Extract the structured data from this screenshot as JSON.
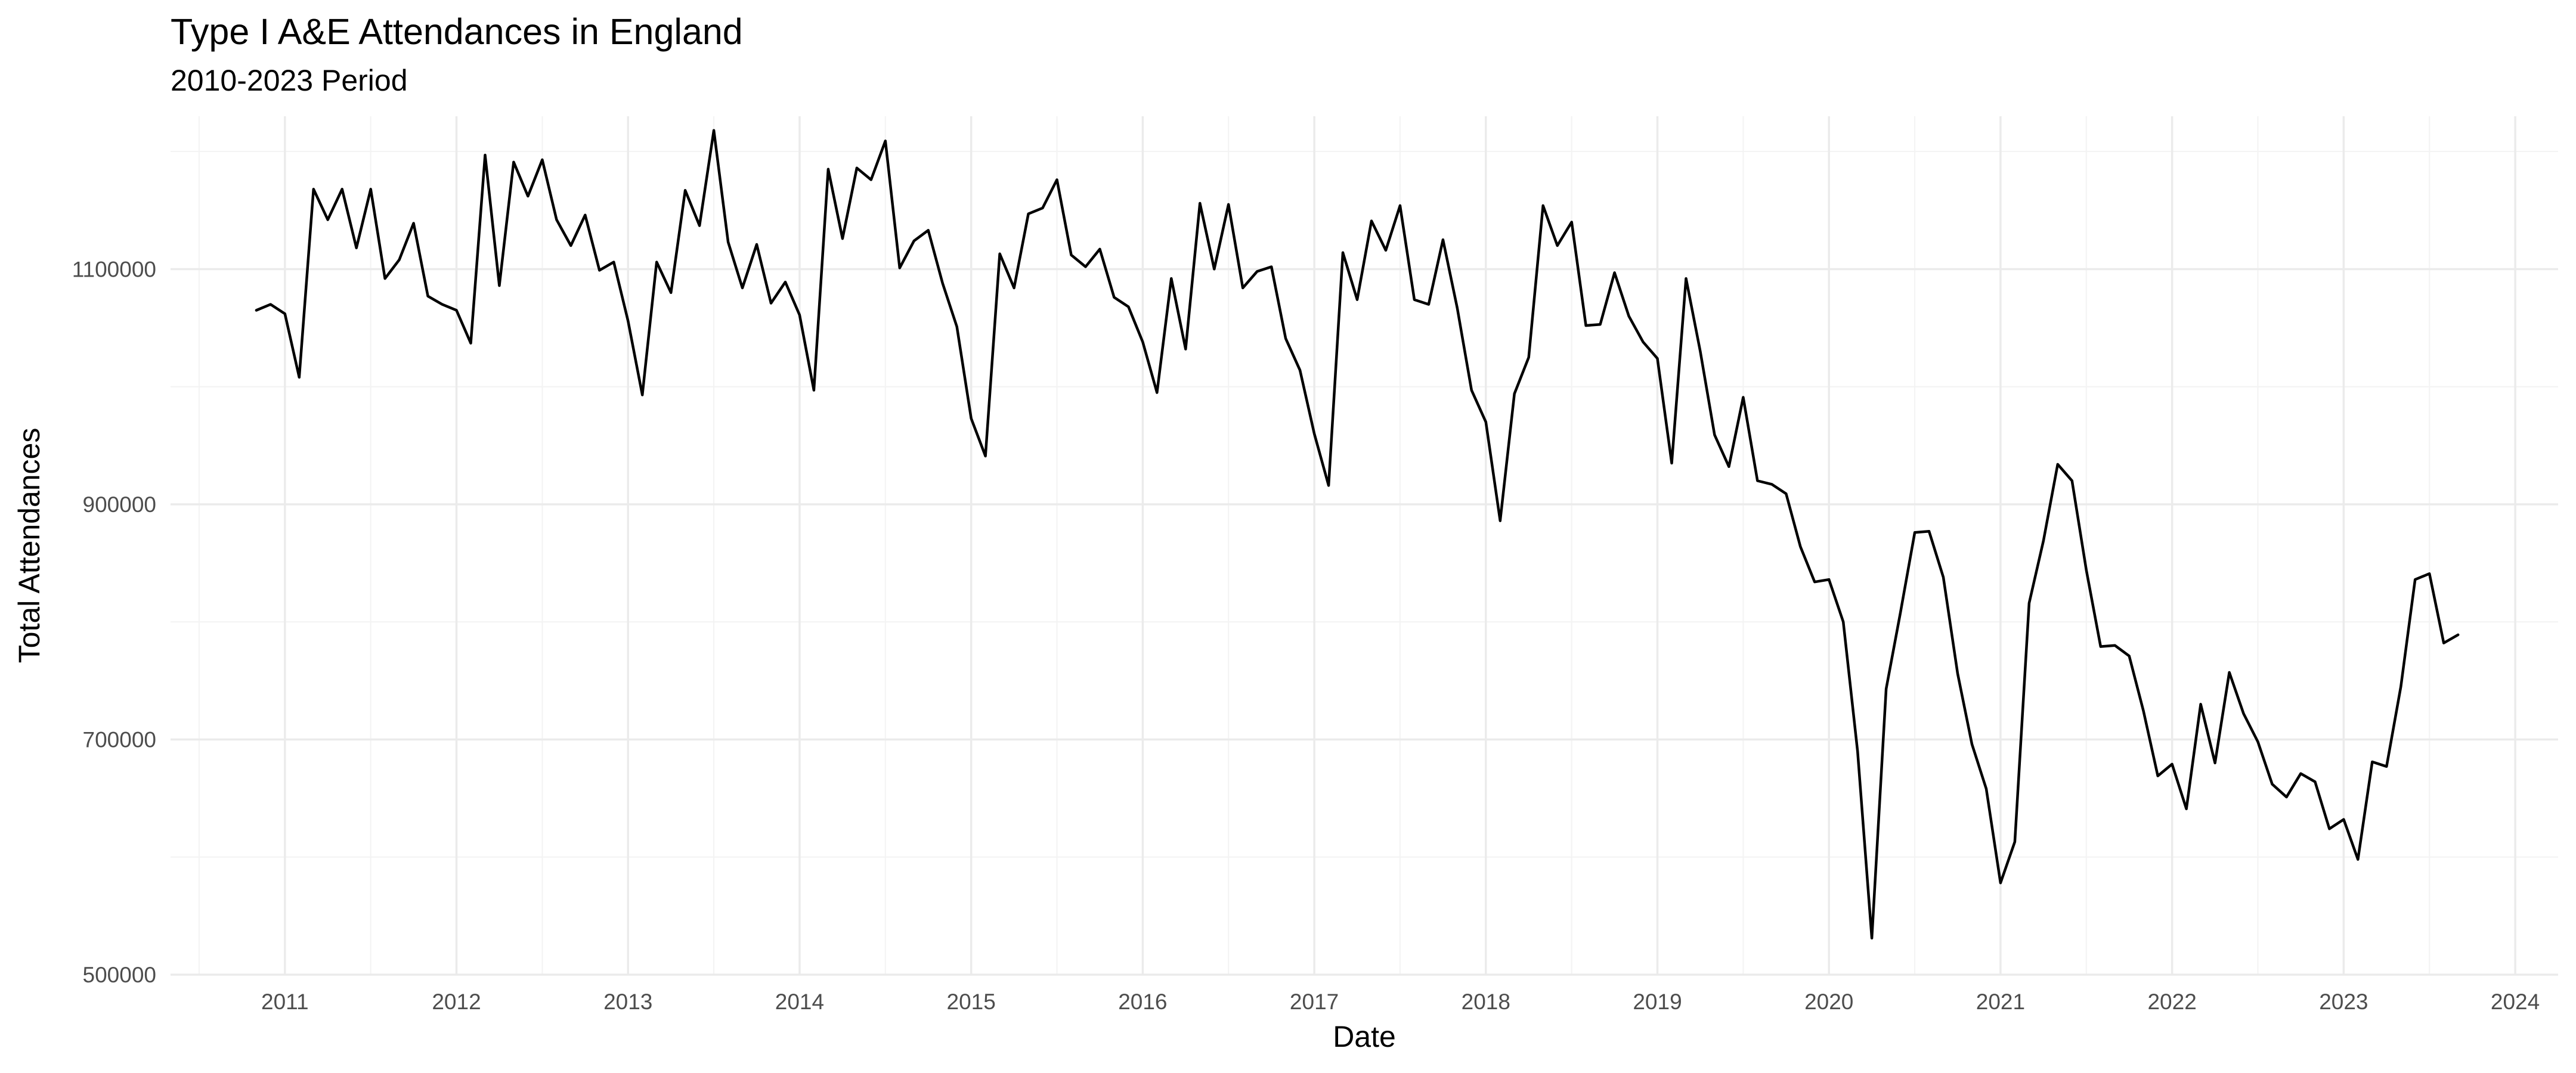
{
  "chart_data": {
    "type": "line",
    "title": "Type I A&E Attendances in England",
    "subtitle": "2010-2023 Period",
    "xlabel": "Date",
    "ylabel": "Total Attendances",
    "xlim": [
      "2010-05-01",
      "2024-04-01"
    ],
    "ylim": [
      500000,
      1230000
    ],
    "x_ticks": [
      "2011",
      "2012",
      "2013",
      "2014",
      "2015",
      "2016",
      "2017",
      "2018",
      "2019",
      "2020",
      "2021",
      "2022",
      "2023",
      "2024"
    ],
    "y_ticks": [
      "500000",
      "700000",
      "900000",
      "1100000"
    ],
    "grid": true,
    "legend": "none",
    "line_color": "#000000",
    "series": [
      {
        "x": [
          "2010-11",
          "2010-12",
          "2011-01",
          "2011-02",
          "2011-03",
          "2011-04",
          "2011-05",
          "2011-06",
          "2011-07",
          "2011-08",
          "2011-09",
          "2011-10",
          "2011-11",
          "2011-12",
          "2012-01",
          "2012-02",
          "2012-03",
          "2012-04",
          "2012-05",
          "2012-06",
          "2012-07",
          "2012-08",
          "2012-09",
          "2012-10",
          "2012-11",
          "2012-12",
          "2013-01",
          "2013-02",
          "2013-03",
          "2013-04",
          "2013-05",
          "2013-06",
          "2013-07",
          "2013-08",
          "2013-09",
          "2013-10",
          "2013-11",
          "2013-12",
          "2014-01",
          "2014-02",
          "2014-03",
          "2014-04",
          "2014-05",
          "2014-06",
          "2014-07",
          "2014-08",
          "2014-09",
          "2014-10",
          "2014-11",
          "2014-12",
          "2015-01",
          "2015-02",
          "2015-03",
          "2015-04",
          "2015-05",
          "2015-06",
          "2015-07",
          "2015-08",
          "2015-09",
          "2015-10",
          "2015-11",
          "2015-12",
          "2016-01",
          "2016-02",
          "2016-03",
          "2016-04",
          "2016-05",
          "2016-06",
          "2016-07",
          "2016-08",
          "2016-09",
          "2016-10",
          "2016-11",
          "2016-12",
          "2017-01",
          "2017-02",
          "2017-03",
          "2017-04",
          "2017-05",
          "2017-06",
          "2017-07",
          "2017-08",
          "2017-09",
          "2017-10",
          "2017-11",
          "2017-12",
          "2018-01",
          "2018-02",
          "2018-03",
          "2018-04",
          "2018-05",
          "2018-06",
          "2018-07",
          "2018-08",
          "2018-09",
          "2018-10",
          "2018-11",
          "2018-12",
          "2019-01",
          "2019-02",
          "2019-03",
          "2019-04",
          "2019-05",
          "2019-06",
          "2019-07",
          "2019-08",
          "2019-09",
          "2019-10",
          "2019-11",
          "2019-12",
          "2020-01",
          "2020-02",
          "2020-03",
          "2020-04",
          "2020-05",
          "2020-06",
          "2020-07",
          "2020-08",
          "2020-09",
          "2020-10",
          "2020-11",
          "2020-12",
          "2021-01",
          "2021-02",
          "2021-03",
          "2021-04",
          "2021-05",
          "2021-06",
          "2021-07",
          "2021-08",
          "2021-09",
          "2021-10",
          "2021-11",
          "2021-12",
          "2022-01",
          "2022-02",
          "2022-03",
          "2022-04",
          "2022-05",
          "2022-06",
          "2022-07",
          "2022-08",
          "2022-09",
          "2022-10",
          "2022-11",
          "2022-12",
          "2023-01",
          "2023-02",
          "2023-03",
          "2023-04",
          "2023-05",
          "2023-06",
          "2023-07",
          "2023-08",
          "2023-09"
        ],
        "y": [
          1065000,
          1070000,
          1062000,
          1008000,
          1168000,
          1142000,
          1168000,
          1118000,
          1168000,
          1092000,
          1108000,
          1139000,
          1077000,
          1070000,
          1065000,
          1037000,
          1197000,
          1086000,
          1191000,
          1162000,
          1193000,
          1142000,
          1120000,
          1146000,
          1099000,
          1106000,
          1056000,
          993000,
          1106000,
          1080000,
          1167000,
          1137000,
          1218000,
          1123000,
          1084000,
          1121000,
          1071000,
          1089000,
          1061000,
          997000,
          1185000,
          1126000,
          1186000,
          1176000,
          1209000,
          1101000,
          1124000,
          1133000,
          1088000,
          1051000,
          973000,
          941000,
          1113000,
          1084000,
          1147000,
          1152000,
          1176000,
          1112000,
          1102000,
          1117000,
          1076000,
          1068000,
          1038000,
          995000,
          1092000,
          1032000,
          1156000,
          1100000,
          1155000,
          1084000,
          1098000,
          1102000,
          1041000,
          1014000,
          960000,
          916000,
          1114000,
          1074000,
          1141000,
          1116000,
          1154000,
          1074000,
          1070000,
          1125000,
          1067000,
          997000,
          970000,
          886000,
          994000,
          1025000,
          1154000,
          1120000,
          1140000,
          1052000,
          1053000,
          1097000,
          1060000,
          1038000,
          1024000,
          935000,
          1092000,
          1030000,
          959000,
          932000,
          991000,
          920000,
          917000,
          909000,
          864000,
          834000,
          836000,
          800000,
          690000,
          531000,
          743000,
          808000,
          876000,
          877000,
          838000,
          756000,
          696000,
          658000,
          578000,
          613000,
          816000,
          869000,
          934000,
          920000,
          844000,
          779000,
          780000,
          771000,
          724000,
          669000,
          679000,
          641000,
          730000,
          680000,
          757000,
          722000,
          698000,
          662000,
          651000,
          671000,
          664000,
          624000,
          632000,
          598000,
          681000,
          677000,
          745000,
          836000,
          841000,
          782000,
          789000
        ]
      }
    ]
  }
}
